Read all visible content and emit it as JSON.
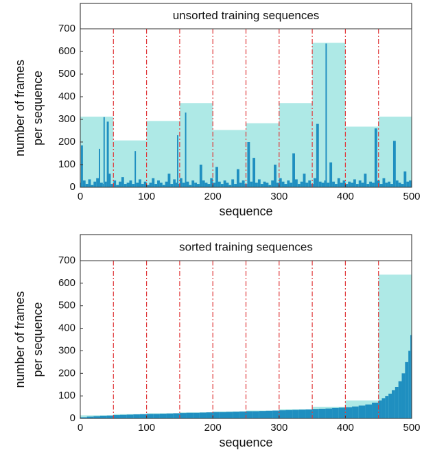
{
  "chart_data": [
    {
      "type": "bar",
      "title": "unsorted training sequences",
      "xlabel": "sequence",
      "ylabel": [
        "number of frames",
        "per sequence"
      ],
      "xlim": [
        0,
        500
      ],
      "xticks": [
        0,
        100,
        200,
        300,
        400,
        500
      ],
      "ylim": [
        0,
        700
      ],
      "yticks": [
        0,
        100,
        200,
        300,
        400,
        500,
        600,
        700
      ],
      "vlines": {
        "x": [
          50,
          100,
          150,
          200,
          250,
          300,
          350,
          400,
          450
        ],
        "color": "#e0383a"
      },
      "batches": {
        "values": [
          312,
          207,
          293,
          372,
          253,
          283,
          372,
          638,
          268,
          312
        ],
        "color": "#aee9e6"
      },
      "sequences": {
        "color": "#1f8fc0",
        "x": [
          0,
          1,
          4,
          8,
          12,
          16,
          20,
          24,
          28,
          30,
          34,
          35,
          37,
          40,
          43,
          46,
          50,
          54,
          58,
          62,
          66,
          70,
          74,
          78,
          82,
          84,
          88,
          92,
          96,
          100,
          104,
          108,
          112,
          116,
          120,
          124,
          128,
          132,
          136,
          140,
          144,
          146,
          148,
          150,
          154,
          158,
          160,
          164,
          168,
          172,
          176,
          180,
          184,
          188,
          192,
          196,
          200,
          204,
          208,
          212,
          216,
          220,
          224,
          228,
          232,
          236,
          240,
          244,
          248,
          252,
          256,
          260,
          264,
          268,
          272,
          276,
          280,
          284,
          288,
          292,
          296,
          300,
          304,
          308,
          312,
          316,
          320,
          324,
          328,
          332,
          336,
          340,
          344,
          348,
          352,
          356,
          360,
          364,
          368,
          370,
          372,
          376,
          380,
          384,
          388,
          392,
          396,
          400,
          404,
          408,
          412,
          416,
          420,
          424,
          428,
          432,
          436,
          440,
          444,
          448,
          452,
          456,
          460,
          464,
          468,
          472,
          476,
          480,
          484,
          488,
          492,
          496
        ],
        "values": [
          20,
          185,
          30,
          15,
          35,
          10,
          25,
          40,
          170,
          20,
          15,
          310,
          25,
          290,
          60,
          15,
          30,
          10,
          25,
          45,
          15,
          20,
          30,
          15,
          160,
          20,
          35,
          15,
          25,
          10,
          20,
          40,
          15,
          30,
          20,
          10,
          25,
          60,
          15,
          35,
          20,
          230,
          15,
          40,
          20,
          330,
          25,
          10,
          30,
          20,
          15,
          100,
          30,
          20,
          15,
          40,
          20,
          90,
          25,
          15,
          30,
          20,
          10,
          35,
          15,
          80,
          20,
          30,
          15,
          200,
          25,
          130,
          20,
          35,
          15,
          25,
          20,
          10,
          30,
          100,
          20,
          40,
          25,
          15,
          30,
          20,
          150,
          35,
          15,
          25,
          60,
          20,
          30,
          15,
          40,
          280,
          25,
          20,
          30,
          635,
          20,
          110,
          25,
          15,
          40,
          20,
          30,
          15,
          25,
          20,
          35,
          15,
          30,
          20,
          60,
          15,
          25,
          20,
          260,
          30,
          15,
          40,
          20,
          25,
          15,
          205,
          30,
          20,
          15,
          70,
          25,
          30
        ]
      }
    },
    {
      "type": "bar",
      "title": "sorted training sequences",
      "xlabel": "sequence",
      "ylabel": [
        "number of frames",
        "per sequence"
      ],
      "xlim": [
        0,
        500
      ],
      "xticks": [
        0,
        100,
        200,
        300,
        400,
        500
      ],
      "ylim": [
        0,
        700
      ],
      "yticks": [
        0,
        100,
        200,
        300,
        400,
        500,
        600,
        700
      ],
      "vlines": {
        "x": [
          50,
          100,
          150,
          200,
          250,
          300,
          350,
          400,
          450
        ],
        "color": "#e0383a"
      },
      "batches": {
        "values": [
          14,
          19,
          23,
          27,
          31,
          35,
          41,
          52,
          80,
          638
        ],
        "color": "#aee9e6"
      },
      "sequences": {
        "color": "#1f8fc0",
        "x": [
          0,
          10,
          20,
          30,
          40,
          50,
          60,
          70,
          80,
          90,
          100,
          110,
          120,
          130,
          140,
          150,
          160,
          170,
          180,
          190,
          200,
          210,
          220,
          230,
          240,
          250,
          260,
          270,
          280,
          290,
          300,
          310,
          320,
          330,
          340,
          350,
          360,
          370,
          380,
          390,
          400,
          410,
          420,
          430,
          440,
          450,
          455,
          460,
          465,
          470,
          475,
          480,
          485,
          490,
          495,
          498
        ],
        "values": [
          5,
          8,
          10,
          12,
          13,
          15,
          16,
          17,
          18,
          19,
          20,
          20,
          21,
          22,
          23,
          24,
          25,
          25,
          26,
          27,
          28,
          28,
          29,
          30,
          31,
          32,
          32,
          33,
          34,
          35,
          36,
          37,
          38,
          39,
          40,
          42,
          43,
          44,
          46,
          48,
          50,
          53,
          57,
          62,
          70,
          80,
          90,
          100,
          110,
          125,
          140,
          165,
          200,
          250,
          300,
          370
        ]
      }
    }
  ]
}
